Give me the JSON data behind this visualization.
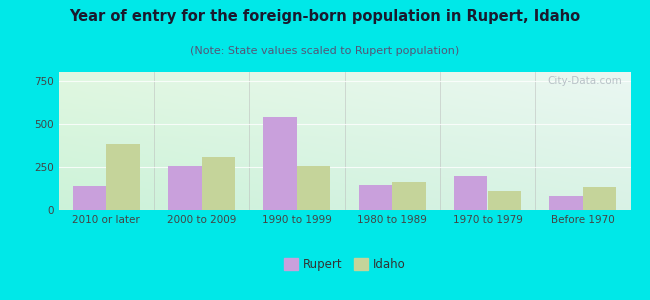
{
  "title": "Year of entry for the foreign-born population in Rupert, Idaho",
  "subtitle": "(Note: State values scaled to Rupert population)",
  "categories": [
    "2010 or later",
    "2000 to 2009",
    "1990 to 1999",
    "1980 to 1989",
    "1970 to 1979",
    "Before 1970"
  ],
  "rupert_values": [
    140,
    255,
    540,
    145,
    200,
    80
  ],
  "idaho_values": [
    380,
    305,
    255,
    160,
    110,
    135
  ],
  "rupert_color": "#c9a0dc",
  "idaho_color": "#c5d49a",
  "bg_outer": "#00e8e8",
  "ylim": [
    0,
    800
  ],
  "yticks": [
    0,
    250,
    500,
    750
  ],
  "bar_width": 0.35,
  "title_fontsize": 10.5,
  "subtitle_fontsize": 8,
  "tick_fontsize": 7.5,
  "legend_fontsize": 8.5,
  "watermark_text": "City-Data.com"
}
